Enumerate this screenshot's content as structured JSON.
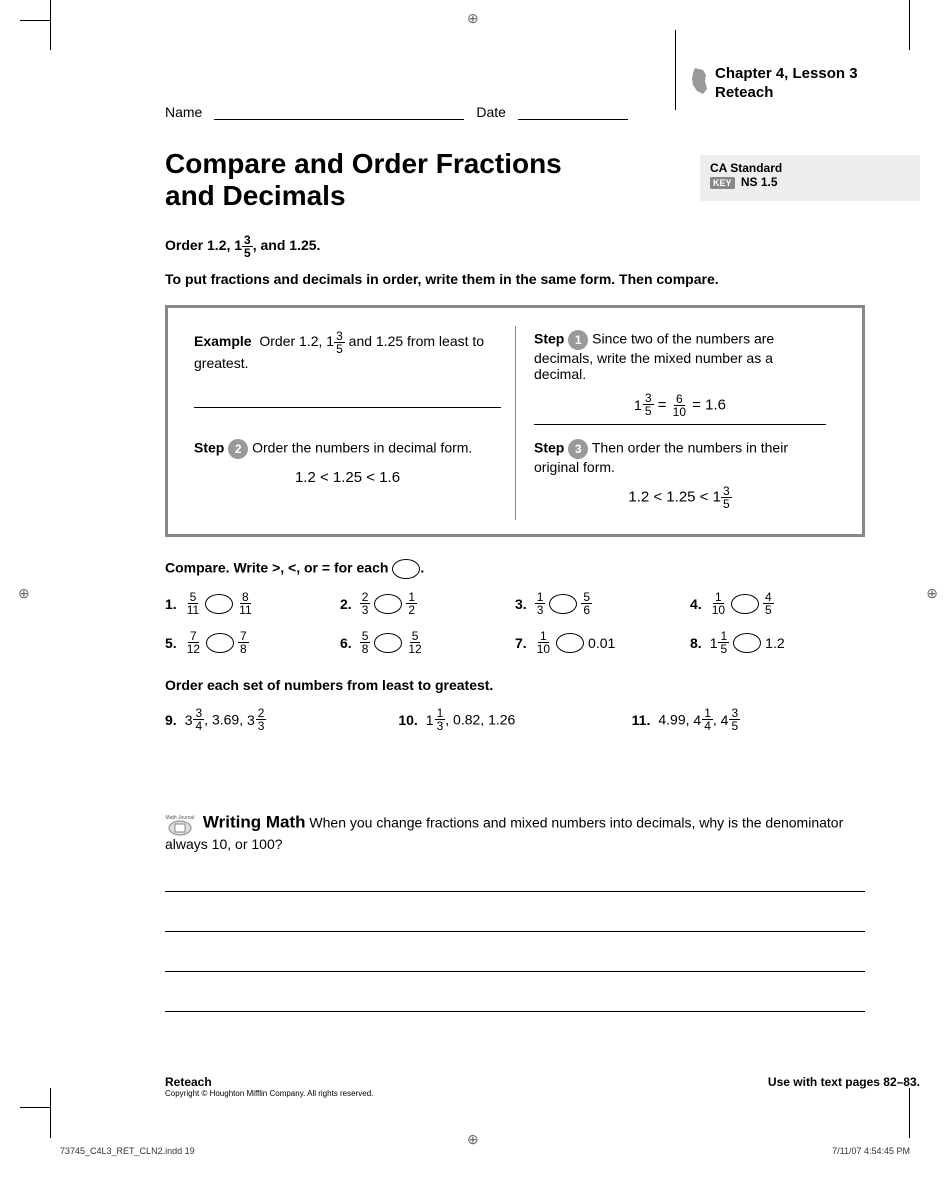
{
  "header": {
    "name_label": "Name",
    "date_label": "Date",
    "chapter_line1": "Chapter 4, Lesson 3",
    "chapter_line2": "Reteach"
  },
  "standard": {
    "heading": "CA Standard",
    "key_label": "KEY",
    "code": "NS 1.5"
  },
  "title_line1": "Compare and Order Fractions",
  "title_line2": "and Decimals",
  "intro": {
    "order_prefix": "Order 1.2, 1",
    "order_frac_n": "3",
    "order_frac_d": "5",
    "order_suffix": ", and 1.25.",
    "line2": "To put fractions and decimals in order, write them in the same form. Then compare."
  },
  "example": {
    "label": "Example",
    "text_prefix": "Order 1.2, 1",
    "frac_n": "3",
    "frac_d": "5",
    "text_suffix": " and 1.25 from least to greatest.",
    "step1_label": "Step",
    "step1_num": "1",
    "step1_text": "Since two of the numbers are decimals, write the mixed number as a decimal.",
    "step1_math_a_w": "1",
    "step1_math_a_n": "3",
    "step1_math_a_d": "5",
    "step1_math_eq1": "=",
    "step1_math_b_n": "6",
    "step1_math_b_d": "10",
    "step1_math_eq2": "= 1.6",
    "step2_label": "Step",
    "step2_num": "2",
    "step2_text": "Order the numbers in decimal form.",
    "step2_math": "1.2 < 1.25 < 1.6",
    "step3_label": "Step",
    "step3_num": "3",
    "step3_text": "Then order the numbers in their original form.",
    "step3_math_prefix": "1.2 < 1.25 < 1",
    "step3_math_n": "3",
    "step3_math_d": "5"
  },
  "compare": {
    "heading_prefix": "Compare. Write >, <, or = for each ",
    "heading_suffix": ".",
    "problems": [
      {
        "num": "1.",
        "a_n": "5",
        "a_d": "11",
        "b_n": "8",
        "b_d": "11"
      },
      {
        "num": "2.",
        "a_n": "2",
        "a_d": "3",
        "b_n": "1",
        "b_d": "2"
      },
      {
        "num": "3.",
        "a_n": "1",
        "a_d": "3",
        "b_n": "5",
        "b_d": "6"
      },
      {
        "num": "4.",
        "a_n": "1",
        "a_d": "10",
        "b_n": "4",
        "b_d": "5"
      },
      {
        "num": "5.",
        "a_n": "7",
        "a_d": "12",
        "b_n": "7",
        "b_d": "8"
      },
      {
        "num": "6.",
        "a_n": "5",
        "a_d": "8",
        "b_n": "5",
        "b_d": "12"
      },
      {
        "num": "7.",
        "a_n": "1",
        "a_d": "10",
        "b_text": "0.01"
      },
      {
        "num": "8.",
        "a_w": "1",
        "a_n": "1",
        "a_d": "5",
        "b_text": "1.2"
      }
    ]
  },
  "order": {
    "heading": "Order each set of numbers from least to greatest.",
    "problems": [
      {
        "num": "9.",
        "parts": [
          {
            "w": "3",
            "n": "3",
            "d": "4"
          },
          {
            "t": ", 3.69, "
          },
          {
            "w": "3",
            "n": "2",
            "d": "3"
          }
        ]
      },
      {
        "num": "10.",
        "parts": [
          {
            "w": "1",
            "n": "1",
            "d": "3"
          },
          {
            "t": ", 0.82, 1.26"
          }
        ]
      },
      {
        "num": "11.",
        "parts": [
          {
            "t": "4.99, "
          },
          {
            "w": "4",
            "n": "1",
            "d": "4"
          },
          {
            "t": ", "
          },
          {
            "w": "4",
            "n": "3",
            "d": "5"
          }
        ]
      }
    ]
  },
  "writing": {
    "badge": "Math Journal",
    "heading": "Writing Math",
    "text": "When you change fractions and mixed numbers into decimals, why is the denominator always 10, or 100?"
  },
  "footer": {
    "reteach": "Reteach",
    "copyright": "Copyright © Houghton Mifflin Company. All rights reserved.",
    "use_with": "Use with text pages 82–83."
  },
  "slug": {
    "file": "73745_C4L3_RET_CLN2.indd   19",
    "timestamp": "7/11/07   4:54:45 PM"
  }
}
